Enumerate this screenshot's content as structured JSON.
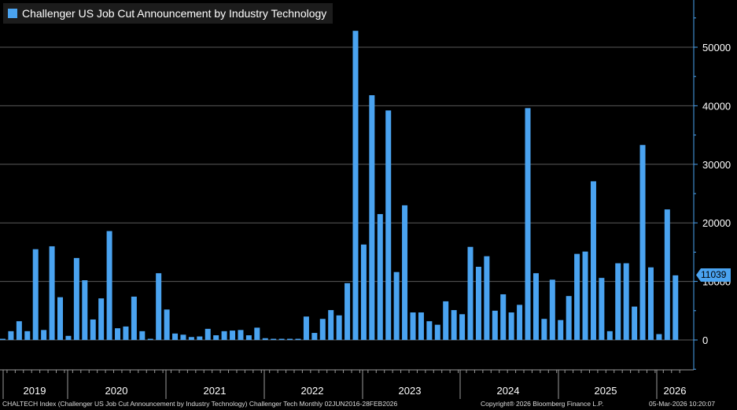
{
  "chart_data": {
    "type": "bar",
    "title": "Challenger US Job Cut Announcement by Industry Technology",
    "legend": [
      "Challenger US Job Cut Announcement by Industry Technology"
    ],
    "legend_position": "top-left",
    "color": "#4aa3f0",
    "background": "#000000",
    "grid": true,
    "ylim": [
      -5000,
      57000
    ],
    "yticks": [
      0,
      10000,
      20000,
      30000,
      40000,
      50000
    ],
    "year_labels": [
      "2019",
      "2020",
      "2021",
      "2022",
      "2023",
      "2024",
      "2025",
      "2026"
    ],
    "last_value_label": "11039",
    "values": [
      200,
      1500,
      3200,
      1500,
      15500,
      1700,
      16000,
      7300,
      700,
      14000,
      10200,
      3500,
      7100,
      18600,
      2000,
      2300,
      7400,
      1500,
      200,
      11400,
      5200,
      1100,
      900,
      500,
      600,
      1900,
      800,
      1500,
      1600,
      1700,
      800,
      2100,
      300,
      200,
      200,
      200,
      200,
      4000,
      1200,
      3600,
      5100,
      4200,
      9700,
      52800,
      16300,
      41800,
      21500,
      39200,
      11600,
      23000,
      4700,
      4700,
      3200,
      2600,
      6600,
      5100,
      4400,
      15900,
      12500,
      14300,
      5000,
      7800,
      4700,
      6000,
      39600,
      11400,
      3600,
      10300,
      3400,
      7500,
      14700,
      15100,
      27100,
      10600,
      1500,
      13100,
      13100,
      5700,
      33300,
      12400,
      1000,
      22300,
      11039
    ]
  },
  "footer": {
    "left": "CHALTECH Index (Challenger US Job Cut Announcement by Industry Technology) Challenger Tech Monthly 02JUN2016-28FEB2026",
    "middle": "Copyright® 2026 Bloomberg Finance L.P.",
    "right": "05-Mar-2026 10:20:07"
  }
}
